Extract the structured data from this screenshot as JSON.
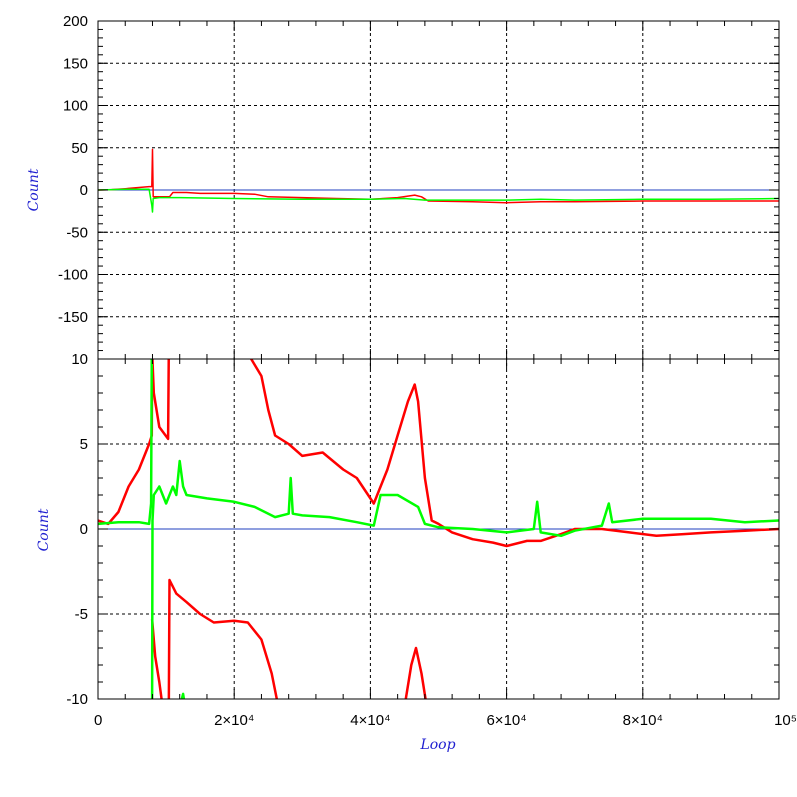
{
  "colors": {
    "series_red": "#ff0000",
    "series_green": "#00ff00",
    "zero_line": "#1f3fbf",
    "grid": "#000000",
    "axis_title": "#1f1fd0"
  },
  "chart_data": [
    {
      "type": "line",
      "panel": "top",
      "ylabel": "Count",
      "xlim": [
        0,
        100000
      ],
      "ylim": [
        -200,
        200
      ],
      "y_ticks": [
        "200",
        "150",
        "100",
        "50",
        "0",
        "-50",
        "-100",
        "-150"
      ],
      "y_tick_values": [
        200,
        150,
        100,
        50,
        0,
        -50,
        -100,
        -150
      ],
      "grid": true,
      "zero_line": true,
      "series": [
        {
          "color": "red",
          "points": [
            [
              0,
              0
            ],
            [
              2000,
              0.5
            ],
            [
              4000,
              1.5
            ],
            [
              6000,
              3
            ],
            [
              7500,
              4
            ],
            [
              7900,
              4
            ],
            [
              8000,
              48
            ],
            [
              8100,
              -8
            ],
            [
              9000,
              -8
            ],
            [
              10500,
              -8
            ],
            [
              11000,
              -3
            ],
            [
              13000,
              -3
            ],
            [
              15000,
              -4
            ],
            [
              20000,
              -4
            ],
            [
              23000,
              -5
            ],
            [
              25000,
              -8
            ],
            [
              30000,
              -9
            ],
            [
              35000,
              -10
            ],
            [
              40000,
              -11
            ],
            [
              44000,
              -9
            ],
            [
              46500,
              -6
            ],
            [
              47500,
              -8
            ],
            [
              48500,
              -13
            ],
            [
              55000,
              -14
            ],
            [
              60000,
              -15
            ],
            [
              65000,
              -14
            ],
            [
              70000,
              -14
            ],
            [
              80000,
              -13
            ],
            [
              90000,
              -13
            ],
            [
              100000,
              -13
            ]
          ]
        },
        {
          "color": "green",
          "points": [
            [
              0,
              0
            ],
            [
              4000,
              1
            ],
            [
              7500,
              1
            ],
            [
              7900,
              -18
            ],
            [
              8000,
              -26
            ],
            [
              8100,
              -10
            ],
            [
              9000,
              -9
            ],
            [
              12000,
              -9
            ],
            [
              20000,
              -10
            ],
            [
              30000,
              -11
            ],
            [
              40000,
              -11
            ],
            [
              45000,
              -10
            ],
            [
              48000,
              -12
            ],
            [
              55000,
              -12
            ],
            [
              60000,
              -12
            ],
            [
              65000,
              -11
            ],
            [
              70000,
              -12
            ],
            [
              80000,
              -11
            ],
            [
              90000,
              -11
            ],
            [
              100000,
              -10
            ]
          ]
        }
      ]
    },
    {
      "type": "line",
      "panel": "bottom",
      "xlabel": "Loop",
      "ylabel": "Count",
      "xlim": [
        0,
        100000
      ],
      "ylim": [
        -10,
        10
      ],
      "x_ticks": [
        "0",
        "2×10⁴",
        "4×10⁴",
        "6×10⁴",
        "8×10⁴",
        "10⁵"
      ],
      "x_tick_values": [
        0,
        20000,
        40000,
        60000,
        80000,
        100000
      ],
      "y_ticks": [
        "10",
        "5",
        "0",
        "-5",
        "-10"
      ],
      "y_tick_values": [
        10,
        5,
        0,
        -5,
        -10
      ],
      "grid": true,
      "zero_line": true,
      "series": [
        {
          "color": "red",
          "segments": [
            [
              [
                0,
                0.5
              ],
              [
                1500,
                0.3
              ],
              [
                3000,
                1
              ],
              [
                4500,
                2.5
              ],
              [
                6000,
                3.5
              ],
              [
                7500,
                5
              ],
              [
                7900,
                5.5
              ],
              [
                7950,
                10.5
              ]
            ],
            [
              [
                7950,
                10.5
              ],
              [
                8200,
                8
              ],
              [
                9000,
                6
              ],
              [
                10300,
                5.3
              ],
              [
                10400,
                10.5
              ]
            ],
            [
              [
                21500,
                10.5
              ],
              [
                22500,
                10
              ],
              [
                24000,
                9
              ],
              [
                25000,
                7
              ],
              [
                26000,
                5.5
              ],
              [
                28000,
                5
              ],
              [
                30000,
                4.3
              ],
              [
                33000,
                4.5
              ],
              [
                36000,
                3.5
              ],
              [
                38000,
                3
              ],
              [
                40500,
                1.5
              ],
              [
                41500,
                2.5
              ],
              [
                42500,
                3.5
              ],
              [
                44000,
                5.5
              ],
              [
                45500,
                7.5
              ],
              [
                46500,
                8.5
              ],
              [
                47000,
                7.5
              ],
              [
                48000,
                3
              ],
              [
                49000,
                0.5
              ],
              [
                50000,
                0.3
              ],
              [
                52000,
                -0.2
              ],
              [
                55000,
                -0.6
              ],
              [
                58000,
                -0.8
              ],
              [
                60000,
                -1
              ],
              [
                63000,
                -0.7
              ],
              [
                65000,
                -0.7
              ],
              [
                68000,
                -0.3
              ],
              [
                70000,
                0
              ],
              [
                74000,
                0
              ],
              [
                78000,
                -0.2
              ],
              [
                82000,
                -0.4
              ],
              [
                86000,
                -0.3
              ],
              [
                90000,
                -0.2
              ],
              [
                95000,
                -0.1
              ],
              [
                100000,
                0
              ]
            ],
            [
              [
                7950,
                -5.3
              ],
              [
                8400,
                -7.5
              ],
              [
                9000,
                -9
              ],
              [
                9500,
                -10.5
              ]
            ],
            [
              [
                10400,
                -10.5
              ],
              [
                10500,
                -3
              ],
              [
                11500,
                -3.8
              ],
              [
                13000,
                -4.3
              ],
              [
                15000,
                -5
              ],
              [
                17000,
                -5.5
              ],
              [
                20000,
                -5.4
              ],
              [
                22000,
                -5.5
              ],
              [
                24000,
                -6.5
              ],
              [
                25500,
                -8.5
              ],
              [
                26500,
                -10.5
              ]
            ],
            [
              [
                45000,
                -10.5
              ],
              [
                46000,
                -8
              ],
              [
                46700,
                -7
              ],
              [
                47500,
                -8.5
              ],
              [
                48300,
                -10.5
              ]
            ]
          ]
        },
        {
          "color": "green",
          "segments": [
            [
              [
                0,
                0.3
              ],
              [
                3000,
                0.4
              ],
              [
                6000,
                0.4
              ],
              [
                7500,
                0.3
              ],
              [
                7800,
                1.5
              ],
              [
                7900,
                10.5
              ]
            ],
            [
              [
                7950,
                -10.5
              ],
              [
                8000,
                0.5
              ],
              [
                8200,
                2
              ],
              [
                9000,
                2.5
              ],
              [
                10000,
                1.5
              ],
              [
                11000,
                2.5
              ],
              [
                11500,
                2
              ],
              [
                12000,
                4
              ],
              [
                12500,
                2.5
              ],
              [
                13000,
                2
              ],
              [
                16000,
                1.8
              ],
              [
                20000,
                1.6
              ],
              [
                23000,
                1.3
              ],
              [
                26000,
                0.7
              ],
              [
                28000,
                0.9
              ],
              [
                28300,
                3
              ],
              [
                28600,
                0.9
              ],
              [
                30000,
                0.8
              ],
              [
                34000,
                0.7
              ],
              [
                38000,
                0.4
              ],
              [
                40500,
                0.2
              ],
              [
                41500,
                2
              ],
              [
                44000,
                2
              ],
              [
                47000,
                1.3
              ],
              [
                48000,
                0.3
              ],
              [
                50000,
                0.1
              ],
              [
                55000,
                0
              ],
              [
                60000,
                -0.2
              ],
              [
                64000,
                0
              ],
              [
                64500,
                1.6
              ],
              [
                65000,
                -0.2
              ],
              [
                68000,
                -0.4
              ],
              [
                70000,
                -0.1
              ],
              [
                74000,
                0.2
              ],
              [
                75000,
                1.5
              ],
              [
                75500,
                0.4
              ],
              [
                80000,
                0.6
              ],
              [
                85000,
                0.6
              ],
              [
                90000,
                0.6
              ],
              [
                95000,
                0.4
              ],
              [
                100000,
                0.5
              ]
            ],
            [
              [
                12000,
                -10.5
              ],
              [
                12500,
                -9.7
              ],
              [
                12800,
                -10.5
              ]
            ]
          ]
        }
      ]
    }
  ]
}
